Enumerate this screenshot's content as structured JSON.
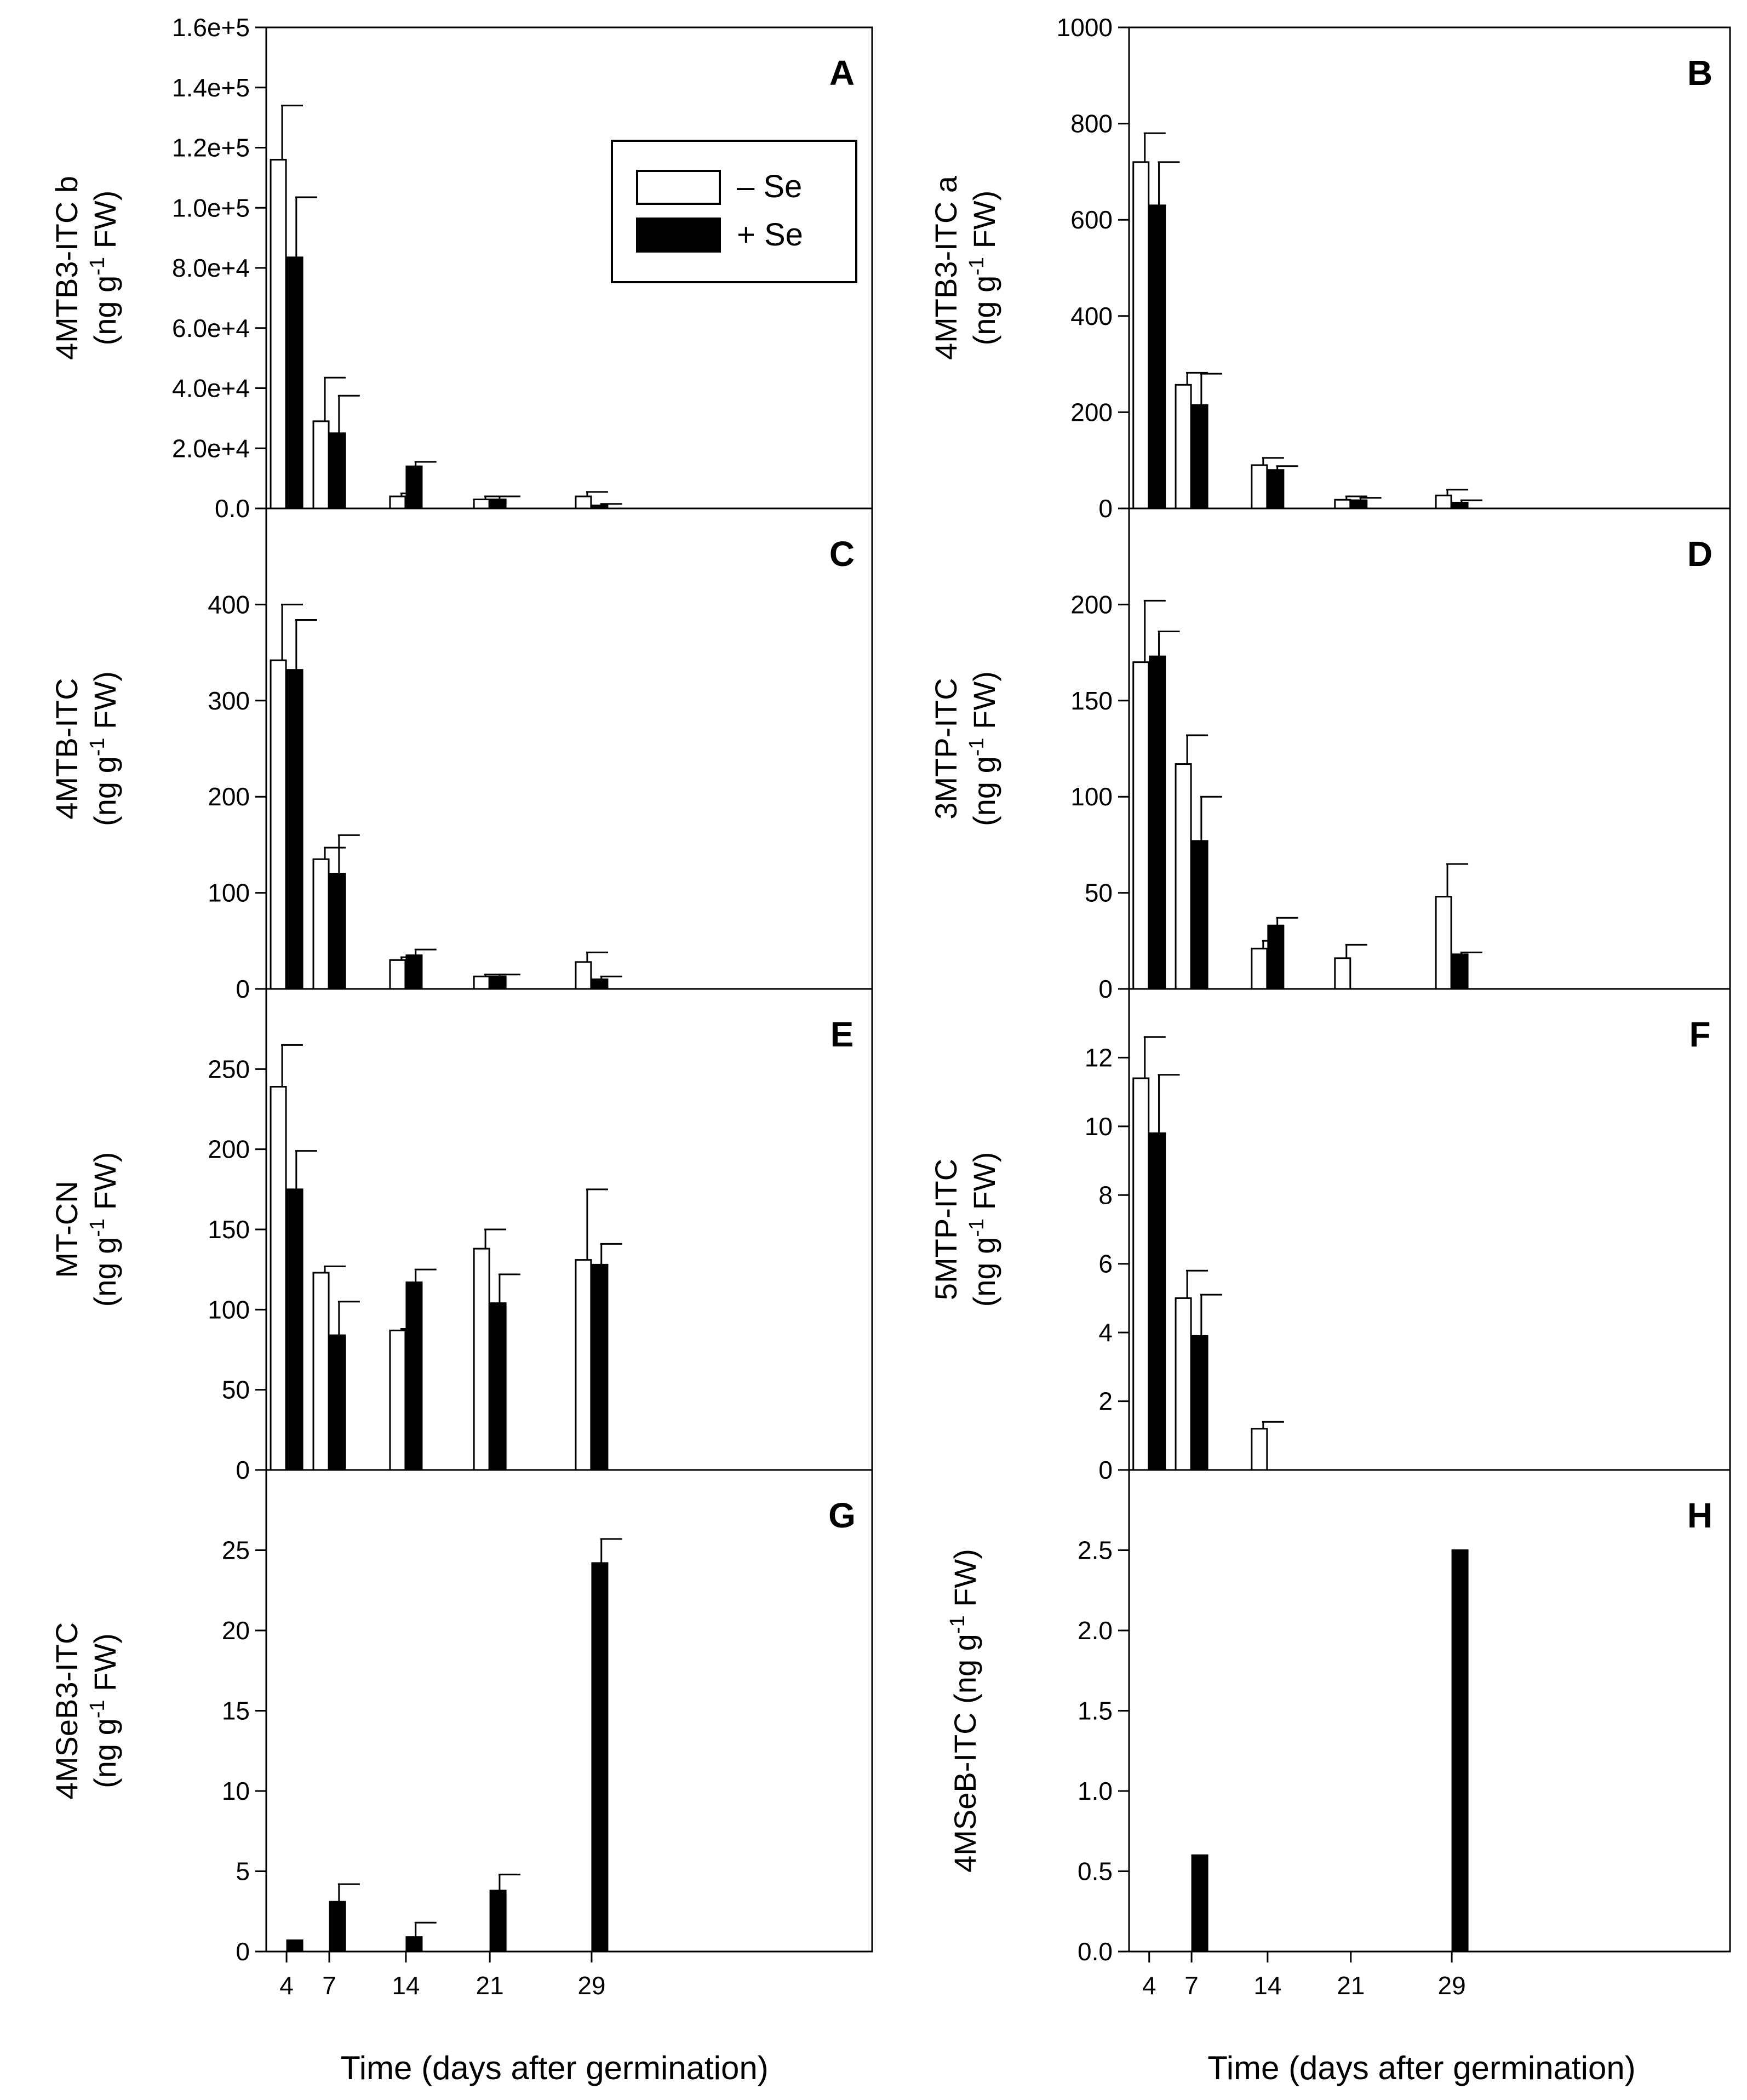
{
  "x_axis": {
    "label": "Time (days after germination)",
    "ticks": [
      "4",
      "7",
      "14",
      "21",
      "29"
    ]
  },
  "legend": {
    "entries": [
      {
        "label": "– Se",
        "color": "#ffffff"
      },
      {
        "label": "+ Se",
        "color": "#000000"
      }
    ]
  },
  "colors": {
    "minus_se": "#ffffff",
    "plus_se": "#000000",
    "stroke": "#000000"
  },
  "chart_data": [
    {
      "panel": "A",
      "type": "bar",
      "ylabel": [
        "4MTB3-ITC b",
        "(ng g-1 FW)"
      ],
      "ylim": [
        0,
        160000
      ],
      "yticks": [
        0,
        20000,
        40000,
        60000,
        80000,
        100000,
        120000,
        140000,
        160000
      ],
      "ytick_labels": [
        "0.0",
        "2.0e+4",
        "4.0e+4",
        "6.0e+4",
        "8.0e+4",
        "1.0e+5",
        "1.2e+5",
        "1.4e+5",
        "1.6e+5"
      ],
      "categories": [
        "4",
        "7",
        "14",
        "21",
        "29"
      ],
      "series": [
        {
          "name": "– Se",
          "values": [
            116000,
            29000,
            4000,
            3000,
            4000
          ],
          "errors": [
            18000,
            14500,
            1000,
            1000,
            1500
          ]
        },
        {
          "name": "+ Se",
          "values": [
            83500,
            25000,
            14000,
            3000,
            1000
          ],
          "errors": [
            20000,
            12500,
            1500,
            1000,
            500
          ]
        }
      ]
    },
    {
      "panel": "B",
      "type": "bar",
      "ylabel": [
        "4MTB3-ITC a",
        "(ng g-1 FW)"
      ],
      "ylim": [
        0,
        1000
      ],
      "yticks": [
        0,
        200,
        400,
        600,
        800,
        1000
      ],
      "ytick_labels": [
        "0",
        "200",
        "400",
        "600",
        "800",
        "1000"
      ],
      "categories": [
        "4",
        "7",
        "14",
        "21",
        "29"
      ],
      "series": [
        {
          "name": "– Se",
          "values": [
            720,
            257,
            90,
            18,
            27
          ],
          "errors": [
            60,
            25,
            15,
            7,
            12
          ]
        },
        {
          "name": "+ Se",
          "values": [
            630,
            215,
            80,
            17,
            12
          ],
          "errors": [
            90,
            65,
            8,
            5,
            5
          ]
        }
      ]
    },
    {
      "panel": "C",
      "type": "bar",
      "ylabel": [
        "4MTB-ITC",
        "(ng g-1 FW)"
      ],
      "ylim": [
        0,
        500
      ],
      "yticks": [
        0,
        100,
        200,
        300,
        400
      ],
      "ytick_labels": [
        "0",
        "100",
        "200",
        "300",
        "400"
      ],
      "categories": [
        "4",
        "7",
        "14",
        "21",
        "29"
      ],
      "series": [
        {
          "name": "– Se",
          "values": [
            342,
            135,
            30,
            13,
            28
          ],
          "errors": [
            58,
            12,
            3,
            2,
            10
          ]
        },
        {
          "name": "+ Se",
          "values": [
            332,
            120,
            35,
            13,
            10
          ],
          "errors": [
            52,
            40,
            6,
            2,
            3
          ]
        }
      ]
    },
    {
      "panel": "D",
      "type": "bar",
      "ylabel": [
        "3MTP-ITC",
        "(ng g-1 FW)"
      ],
      "ylim": [
        0,
        250
      ],
      "yticks": [
        0,
        50,
        100,
        150,
        200
      ],
      "ytick_labels": [
        "0",
        "50",
        "100",
        "150",
        "200"
      ],
      "categories": [
        "4",
        "7",
        "14",
        "21",
        "29"
      ],
      "series": [
        {
          "name": "– Se",
          "values": [
            170,
            117,
            21,
            16,
            48
          ],
          "errors": [
            32,
            15,
            4,
            7,
            17
          ]
        },
        {
          "name": "+ Se",
          "values": [
            173,
            77,
            33,
            0,
            18
          ],
          "errors": [
            13,
            23,
            4,
            0,
            1
          ]
        }
      ]
    },
    {
      "panel": "E",
      "type": "bar",
      "ylabel": [
        "MT-CN",
        "(ng g-1 FW)"
      ],
      "ylim": [
        0,
        300
      ],
      "yticks": [
        0,
        50,
        100,
        150,
        200,
        250
      ],
      "ytick_labels": [
        "0",
        "50",
        "100",
        "150",
        "200",
        "250"
      ],
      "categories": [
        "4",
        "7",
        "14",
        "21",
        "29"
      ],
      "series": [
        {
          "name": "– Se",
          "values": [
            239,
            123,
            87,
            138,
            131
          ],
          "errors": [
            26,
            4,
            1,
            12,
            44
          ]
        },
        {
          "name": "+ Se",
          "values": [
            175,
            84,
            117,
            104,
            128
          ],
          "errors": [
            24,
            21,
            8,
            18,
            13
          ]
        }
      ]
    },
    {
      "panel": "F",
      "type": "bar",
      "ylabel": [
        "5MTP-ITC",
        "(ng g-1 FW)"
      ],
      "ylim": [
        0,
        14
      ],
      "yticks": [
        0,
        2,
        4,
        6,
        8,
        10,
        12
      ],
      "ytick_labels": [
        "0",
        "2",
        "4",
        "6",
        "8",
        "10",
        "12"
      ],
      "categories": [
        "4",
        "7",
        "14",
        "21",
        "29"
      ],
      "series": [
        {
          "name": "– Se",
          "values": [
            11.4,
            5.0,
            1.2,
            0,
            0
          ],
          "errors": [
            1.2,
            0.8,
            0.2,
            0,
            0
          ]
        },
        {
          "name": "+ Se",
          "values": [
            9.8,
            3.9,
            0,
            0,
            0
          ],
          "errors": [
            1.7,
            1.2,
            0,
            0,
            0
          ]
        }
      ]
    },
    {
      "panel": "G",
      "type": "bar",
      "ylabel": [
        "4MSeB3-ITC",
        "(ng g-1 FW)"
      ],
      "ylim": [
        0,
        30
      ],
      "yticks": [
        0,
        5,
        10,
        15,
        20,
        25
      ],
      "ytick_labels": [
        "0",
        "5",
        "10",
        "15",
        "20",
        "25"
      ],
      "categories": [
        "4",
        "7",
        "14",
        "21",
        "29"
      ],
      "series": [
        {
          "name": "– Se",
          "values": [
            0,
            0,
            0,
            0,
            0
          ],
          "errors": [
            0,
            0,
            0,
            0,
            0
          ]
        },
        {
          "name": "+ Se",
          "values": [
            0.7,
            3.1,
            0.9,
            3.8,
            24.2
          ],
          "errors": [
            0,
            1.1,
            0.9,
            1.0,
            1.5
          ]
        }
      ]
    },
    {
      "panel": "H",
      "type": "bar",
      "ylabel": [
        "4MSeB-ITC (ng g-1 FW)"
      ],
      "ylim": [
        0,
        3.0
      ],
      "yticks": [
        0,
        0.5,
        1.0,
        1.5,
        2.0,
        2.5
      ],
      "ytick_labels": [
        "0.0",
        "0.5",
        "1.0",
        "1.5",
        "2.0",
        "2.5"
      ],
      "categories": [
        "4",
        "7",
        "14",
        "21",
        "29"
      ],
      "series": [
        {
          "name": "– Se",
          "values": [
            0,
            0,
            0,
            0,
            0
          ],
          "errors": [
            0,
            0,
            0,
            0,
            0
          ]
        },
        {
          "name": "+ Se",
          "values": [
            0,
            0.6,
            0,
            0,
            2.5
          ],
          "errors": [
            0,
            0,
            0,
            0,
            0
          ]
        }
      ]
    }
  ]
}
